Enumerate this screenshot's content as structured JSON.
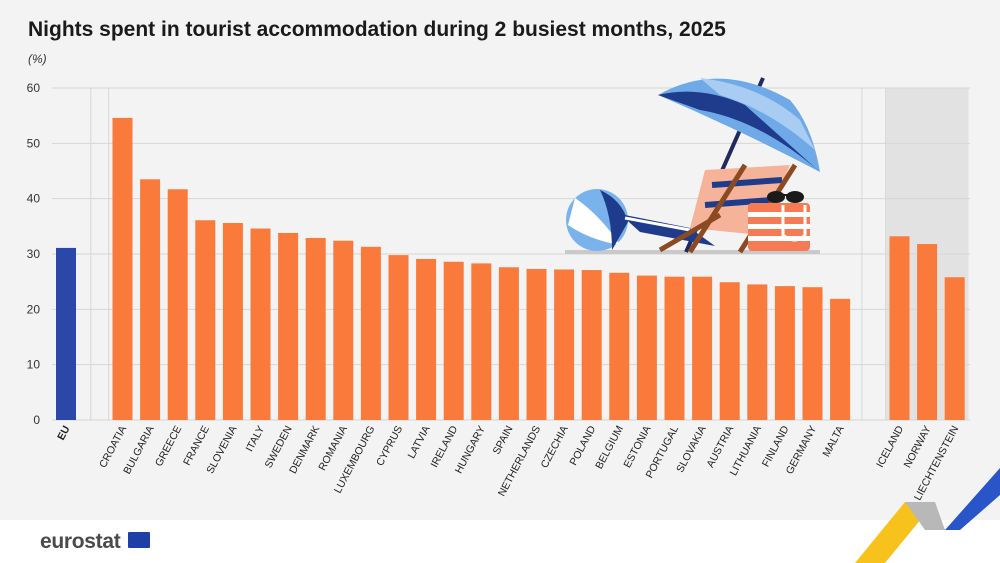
{
  "title": "Nights spent in tourist accommodation during 2 busiest months, 2025",
  "unit": "(%)",
  "brand": "eurostat",
  "colors": {
    "eu": "#2b48a8",
    "country": "#f97a3b",
    "efta_band": "#e2e2e2",
    "grid": "#d6d6d6"
  },
  "icons": [
    "beach-umbrella-icon",
    "beach-ball-icon",
    "deck-chair-icon",
    "beach-bag-icon",
    "sunglasses-icon",
    "eu-flag-icon"
  ],
  "chart_data": {
    "type": "bar",
    "title": "Nights spent in tourist accommodation during 2 busiest months, 2025",
    "ylabel": "(%)",
    "ylim": [
      0,
      60
    ],
    "yticks": [
      0,
      10,
      20,
      30,
      40,
      50,
      60
    ],
    "grid": true,
    "categories": [
      "EU",
      "CROATIA",
      "BULGARIA",
      "GREECE",
      "FRANCE",
      "SLOVENIA",
      "ITALY",
      "SWEDEN",
      "DENMARK",
      "ROMANIA",
      "LUXEMBOURG",
      "CYPRUS",
      "LATVIA",
      "IRELAND",
      "HUNGARY",
      "SPAIN",
      "NETHERLANDS",
      "CZECHIA",
      "POLAND",
      "BELGIUM",
      "ESTONIA",
      "PORTUGAL",
      "SLOVAKIA",
      "AUSTRIA",
      "LITHUANIA",
      "FINLAND",
      "GERMANY",
      "MALTA",
      "ICELAND",
      "NORWAY",
      "LIECHTENSTEIN"
    ],
    "values": [
      31.1,
      54.6,
      43.5,
      41.7,
      36.1,
      35.6,
      34.6,
      33.8,
      32.9,
      32.4,
      31.3,
      29.8,
      29.1,
      28.6,
      28.3,
      27.6,
      27.3,
      27.2,
      27.1,
      26.6,
      26.1,
      25.9,
      25.9,
      24.9,
      24.5,
      24.2,
      24.0,
      21.9,
      33.2,
      31.8,
      25.8
    ],
    "groups": {
      "EU": [
        0
      ],
      "member_states": [
        1,
        27
      ],
      "efta": [
        28,
        30
      ]
    }
  }
}
